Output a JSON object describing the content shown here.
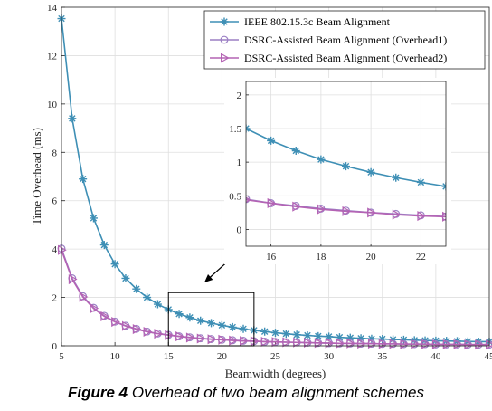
{
  "caption": {
    "label": "Figure 4",
    "text": "Overhead of two beam alignment schemes"
  },
  "chart_data": {
    "type": "line",
    "xlabel": "Beamwidth (degrees)",
    "ylabel": "Time Overhead (ms)",
    "xlim": [
      5,
      45
    ],
    "ylim": [
      0,
      14
    ],
    "xticks": [
      5,
      10,
      15,
      20,
      25,
      30,
      35,
      40,
      45
    ],
    "yticks": [
      0,
      2,
      4,
      6,
      8,
      10,
      12,
      14
    ],
    "grid": true,
    "legend": "top-right",
    "x": [
      5,
      6,
      7,
      8,
      9,
      10,
      11,
      12,
      13,
      14,
      15,
      16,
      17,
      18,
      19,
      20,
      21,
      22,
      23,
      24,
      25,
      26,
      27,
      28,
      29,
      30,
      31,
      32,
      33,
      34,
      35,
      36,
      37,
      38,
      39,
      40,
      41,
      42,
      43,
      44,
      45
    ],
    "series": [
      {
        "name": "IEEE 802.15.3c Beam Alignment",
        "marker": "asterisk",
        "color": "#3e8fb5",
        "values": [
          13.53,
          9.4,
          6.9,
          5.28,
          4.17,
          3.38,
          2.79,
          2.35,
          2.0,
          1.72,
          1.5,
          1.32,
          1.17,
          1.04,
          0.94,
          0.85,
          0.77,
          0.7,
          0.64,
          0.59,
          0.54,
          0.5,
          0.46,
          0.43,
          0.4,
          0.38,
          0.35,
          0.33,
          0.31,
          0.29,
          0.28,
          0.26,
          0.25,
          0.23,
          0.22,
          0.21,
          0.2,
          0.19,
          0.18,
          0.17,
          0.17
        ]
      },
      {
        "name": "DSRC-Assisted Beam Alignment (Overhead1)",
        "marker": "circle",
        "color": "#9b7fc4",
        "values": [
          4.02,
          2.79,
          2.05,
          1.57,
          1.24,
          1.0,
          0.83,
          0.7,
          0.59,
          0.51,
          0.45,
          0.39,
          0.35,
          0.31,
          0.28,
          0.25,
          0.23,
          0.21,
          0.19,
          0.17,
          0.16,
          0.15,
          0.14,
          0.13,
          0.12,
          0.11,
          0.1,
          0.1,
          0.09,
          0.09,
          0.08,
          0.08,
          0.07,
          0.07,
          0.07,
          0.06,
          0.06,
          0.06,
          0.05,
          0.05,
          0.05
        ]
      },
      {
        "name": "DSRC-Assisted Beam Alignment (Overhead2)",
        "marker": "triangle-right",
        "color": "#b463b4",
        "values": [
          3.96,
          2.75,
          2.02,
          1.55,
          1.22,
          0.99,
          0.82,
          0.69,
          0.58,
          0.5,
          0.44,
          0.39,
          0.34,
          0.3,
          0.27,
          0.25,
          0.22,
          0.2,
          0.19,
          0.17,
          0.16,
          0.15,
          0.14,
          0.13,
          0.12,
          0.11,
          0.1,
          0.1,
          0.09,
          0.09,
          0.08,
          0.08,
          0.07,
          0.07,
          0.07,
          0.06,
          0.06,
          0.06,
          0.05,
          0.05,
          0.05
        ]
      }
    ],
    "inset": {
      "xlim": [
        15,
        23
      ],
      "ylim": [
        -0.25,
        2.2
      ],
      "xticks": [
        16,
        18,
        20,
        22
      ],
      "yticks": [
        0,
        0.5,
        1,
        1.5,
        2
      ],
      "ytick_labels": [
        "0",
        "0.5",
        "1",
        "1.5",
        "2"
      ],
      "zoom_box_xlim": [
        15,
        23
      ],
      "zoom_box_ylim": [
        0,
        2.2
      ]
    }
  }
}
